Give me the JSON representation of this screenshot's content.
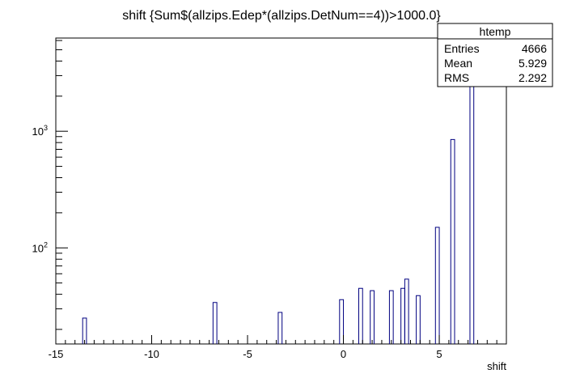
{
  "chart_data": {
    "type": "bar",
    "title": "shift {Sum$(allzips.Edep*(allzips.DetNum==4))>1000.0}",
    "xlabel": "shift",
    "ylabel": "",
    "xlim": [
      -15,
      8.5
    ],
    "ylim": [
      15,
      6300
    ],
    "yscale": "log",
    "grid": false,
    "bin_width": 0.2,
    "xticks": [
      -15,
      -10,
      -5,
      0,
      5
    ],
    "xtick_labels": [
      "-15",
      "-10",
      "-5",
      "0",
      "5"
    ],
    "yticks": [
      {
        "value": 100,
        "base": "10",
        "exp": "2"
      },
      {
        "value": 1000,
        "base": "10",
        "exp": "3"
      }
    ],
    "bins": [
      {
        "x": -13.6,
        "value": 25
      },
      {
        "x": -6.8,
        "value": 34
      },
      {
        "x": -3.4,
        "value": 28
      },
      {
        "x": -0.2,
        "value": 36
      },
      {
        "x": 0.8,
        "value": 45
      },
      {
        "x": 1.4,
        "value": 43
      },
      {
        "x": 2.4,
        "value": 43
      },
      {
        "x": 3.0,
        "value": 45
      },
      {
        "x": 3.2,
        "value": 54
      },
      {
        "x": 3.8,
        "value": 39
      },
      {
        "x": 4.8,
        "value": 150
      },
      {
        "x": 5.6,
        "value": 850
      },
      {
        "x": 6.6,
        "value": 3500
      }
    ],
    "bar_color": "#000080",
    "stats": {
      "name": "htemp",
      "rows": [
        {
          "label": "Entries",
          "value": "4666"
        },
        {
          "label": "Mean",
          "value": "5.929"
        },
        {
          "label": "RMS",
          "value": "2.292"
        }
      ]
    },
    "legend_position": "top-right"
  }
}
